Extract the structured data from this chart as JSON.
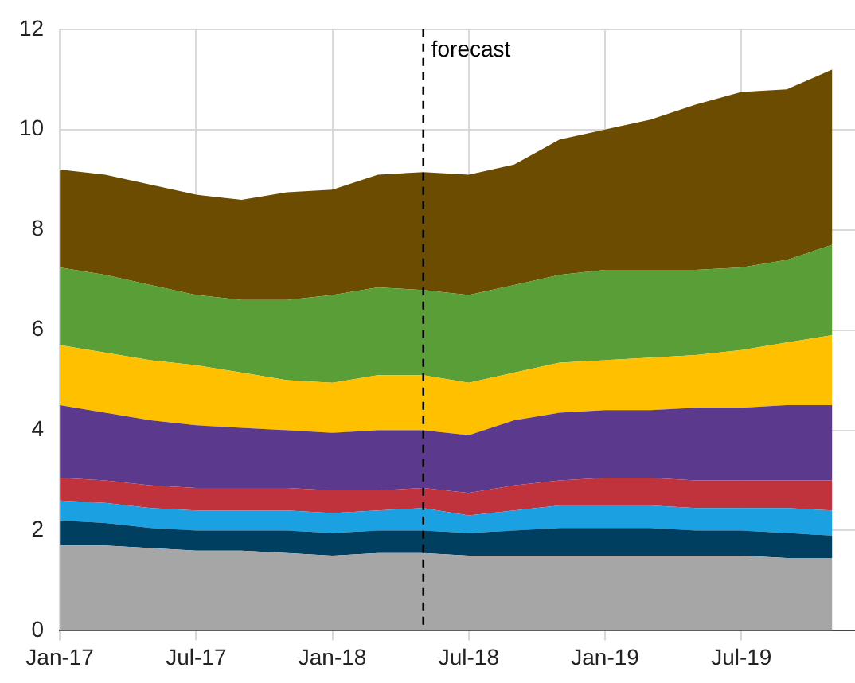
{
  "chart_data": {
    "type": "area",
    "stacked": true,
    "x": [
      "2017-01",
      "2017-03",
      "2017-05",
      "2017-07",
      "2017-09",
      "2017-11",
      "2018-01",
      "2018-03",
      "2018-05",
      "2018-07",
      "2018-09",
      "2018-11",
      "2019-01",
      "2019-03",
      "2019-05",
      "2019-07",
      "2019-09",
      "2019-11"
    ],
    "series": [
      {
        "color": "#a6a6a6",
        "values": [
          1.7,
          1.7,
          1.65,
          1.6,
          1.6,
          1.55,
          1.5,
          1.55,
          1.55,
          1.5,
          1.5,
          1.5,
          1.5,
          1.5,
          1.5,
          1.5,
          1.45,
          1.45
        ]
      },
      {
        "color": "#003f5f",
        "values": [
          0.5,
          0.45,
          0.4,
          0.4,
          0.4,
          0.45,
          0.45,
          0.45,
          0.45,
          0.45,
          0.5,
          0.55,
          0.55,
          0.55,
          0.5,
          0.5,
          0.5,
          0.45
        ]
      },
      {
        "color": "#1ba1e2",
        "values": [
          0.4,
          0.4,
          0.4,
          0.4,
          0.4,
          0.4,
          0.4,
          0.4,
          0.45,
          0.35,
          0.4,
          0.45,
          0.45,
          0.45,
          0.45,
          0.45,
          0.5,
          0.5
        ]
      },
      {
        "color": "#c0323c",
        "values": [
          0.45,
          0.45,
          0.45,
          0.45,
          0.45,
          0.45,
          0.45,
          0.4,
          0.4,
          0.45,
          0.5,
          0.5,
          0.55,
          0.55,
          0.55,
          0.55,
          0.55,
          0.6
        ]
      },
      {
        "color": "#5b3a8e",
        "values": [
          1.45,
          1.35,
          1.3,
          1.25,
          1.2,
          1.15,
          1.15,
          1.2,
          1.15,
          1.15,
          1.3,
          1.35,
          1.35,
          1.35,
          1.45,
          1.45,
          1.5,
          1.5
        ]
      },
      {
        "color": "#ffc000",
        "values": [
          1.2,
          1.2,
          1.2,
          1.2,
          1.1,
          1.0,
          1.0,
          1.1,
          1.1,
          1.05,
          0.95,
          1.0,
          1.0,
          1.05,
          1.05,
          1.15,
          1.25,
          1.4
        ]
      },
      {
        "color": "#5a9e38",
        "values": [
          1.55,
          1.55,
          1.5,
          1.4,
          1.45,
          1.6,
          1.75,
          1.75,
          1.7,
          1.75,
          1.75,
          1.75,
          1.8,
          1.75,
          1.7,
          1.65,
          1.65,
          1.8
        ]
      },
      {
        "color": "#6b4c00",
        "values": [
          1.95,
          2.0,
          2.0,
          2.0,
          2.0,
          2.15,
          2.1,
          2.25,
          2.35,
          2.4,
          2.4,
          2.7,
          2.8,
          3.0,
          3.3,
          3.5,
          3.4,
          3.5
        ]
      }
    ],
    "xlim": [
      "2017-01",
      "2019-12"
    ],
    "xticks": [
      {
        "value": "2017-01",
        "label": "Jan-17"
      },
      {
        "value": "2017-07",
        "label": "Jul-17"
      },
      {
        "value": "2018-01",
        "label": "Jan-18"
      },
      {
        "value": "2018-07",
        "label": "Jul-18"
      },
      {
        "value": "2019-01",
        "label": "Jan-19"
      },
      {
        "value": "2019-07",
        "label": "Jul-19"
      }
    ],
    "ylim": [
      0,
      12
    ],
    "yticks": [
      0,
      2,
      4,
      6,
      8,
      10,
      12
    ],
    "grid": true,
    "legend": false,
    "ref_lines": [
      {
        "axis": "x",
        "value": "2018-05",
        "label": "forecast",
        "color": "#000000",
        "line_style": "dashed"
      }
    ]
  }
}
